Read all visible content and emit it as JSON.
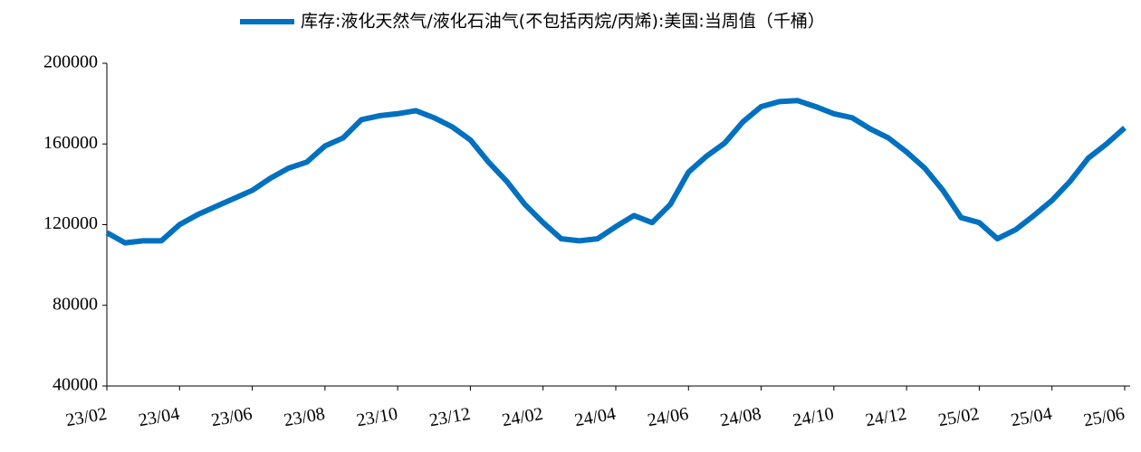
{
  "chart_data": {
    "type": "line",
    "x": [
      "23/02",
      null,
      null,
      null,
      "23/04",
      null,
      null,
      null,
      "23/06",
      null,
      null,
      null,
      "23/08",
      null,
      null,
      null,
      "23/10",
      null,
      null,
      null,
      "23/12",
      null,
      null,
      null,
      "24/02",
      null,
      null,
      null,
      "24/04",
      null,
      null,
      null,
      "24/06",
      null,
      null,
      null,
      "24/08",
      null,
      null,
      null,
      "24/10",
      null,
      null,
      null,
      "24/12",
      null,
      null,
      null,
      "25/02",
      null,
      null,
      null,
      "25/04",
      null,
      null,
      null,
      "25/06"
    ],
    "series": [
      {
        "name": "库存:液化天然气/液化石油气(不包括丙烷/丙烯):美国:当周值（千桶）",
        "color": "#0070c0",
        "values": [
          116000,
          111000,
          112000,
          112000,
          120000,
          125000,
          129000,
          133000,
          137000,
          143000,
          148000,
          151000,
          159000,
          163000,
          172000,
          174000,
          175000,
          176500,
          173000,
          168500,
          162000,
          151000,
          141500,
          130000,
          121000,
          113000,
          112000,
          113000,
          119000,
          124500,
          121000,
          130000,
          146000,
          154000,
          160500,
          171000,
          178500,
          181000,
          181500,
          178500,
          175000,
          173000,
          167500,
          163000,
          156000,
          148000,
          137000,
          123500,
          121000,
          113000,
          117500,
          124500,
          132000,
          141500,
          153000,
          160000,
          168000
        ]
      }
    ],
    "ylim": [
      40000,
      200000
    ],
    "yticks": [
      40000,
      80000,
      120000,
      160000,
      200000
    ]
  }
}
